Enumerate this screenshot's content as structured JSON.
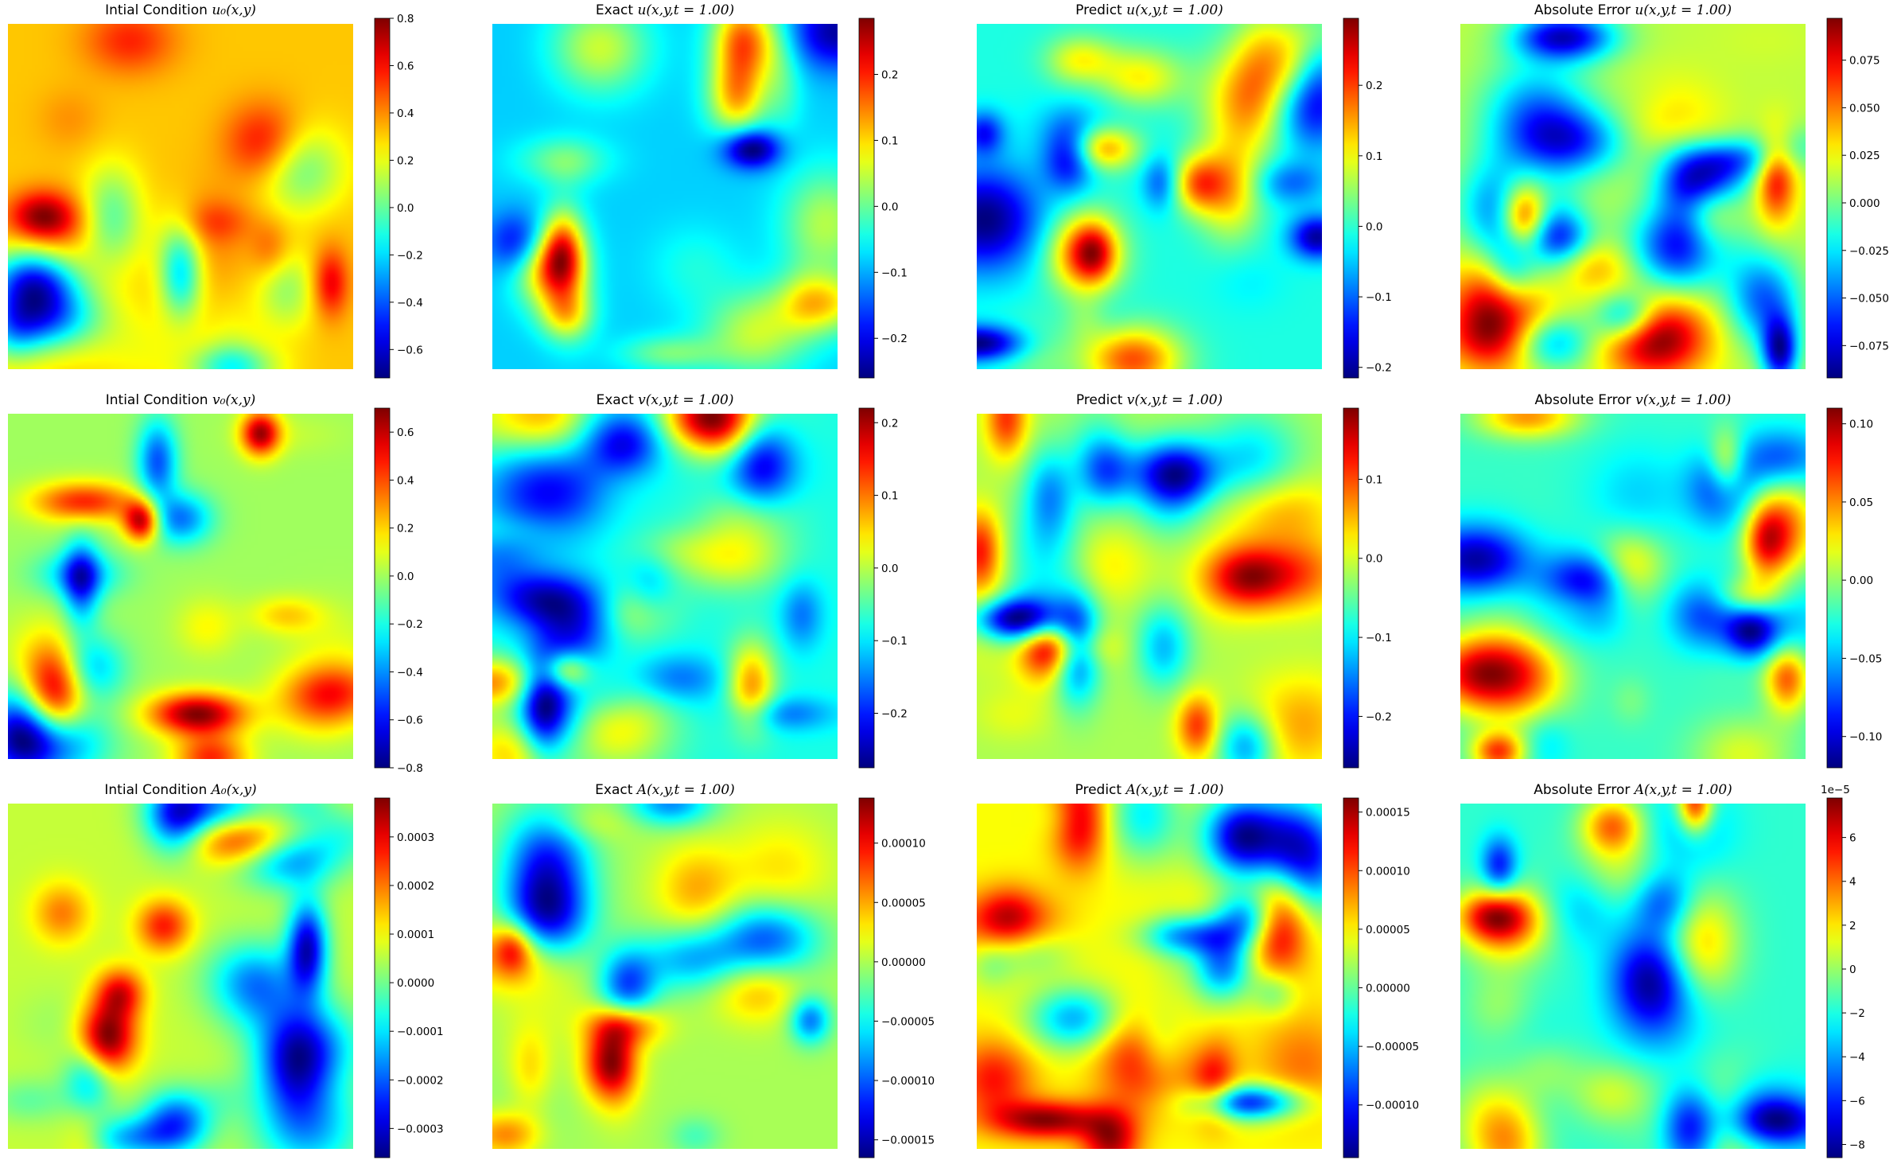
{
  "chart_data": [
    {
      "type": "heatmap",
      "row": 0,
      "col": 0,
      "title_prefix": "Intial Condition ",
      "title_math": "u₀(x,y)",
      "colormap": "jet",
      "vmin": -0.72,
      "vmax": 0.8,
      "ticks": [
        -0.6,
        -0.4,
        -0.2,
        0.0,
        0.2,
        0.4,
        0.6,
        0.8
      ],
      "tick_labels": [
        "−0.6",
        "−0.4",
        "−0.2",
        "0.0",
        "0.2",
        "0.4",
        "0.6",
        "0.8"
      ],
      "offset_text": "",
      "seed": 11
    },
    {
      "type": "heatmap",
      "row": 0,
      "col": 1,
      "title_prefix": "Exact ",
      "title_math": "u(x,y,t = 1.00)",
      "colormap": "jet",
      "vmin": -0.26,
      "vmax": 0.285,
      "ticks": [
        -0.2,
        -0.1,
        0.0,
        0.1,
        0.2
      ],
      "tick_labels": [
        "−0.2",
        "−0.1",
        "0.0",
        "0.1",
        "0.2"
      ],
      "offset_text": "",
      "seed": 23
    },
    {
      "type": "heatmap",
      "row": 0,
      "col": 2,
      "title_prefix": "Predict ",
      "title_math": "u(x,y,t = 1.00)",
      "colormap": "jet",
      "vmin": -0.215,
      "vmax": 0.295,
      "ticks": [
        -0.2,
        -0.1,
        0.0,
        0.1,
        0.2
      ],
      "tick_labels": [
        "−0.2",
        "−0.1",
        "0.0",
        "0.1",
        "0.2"
      ],
      "offset_text": "",
      "seed": 37
    },
    {
      "type": "heatmap",
      "row": 0,
      "col": 3,
      "title_prefix": "Absolute Error ",
      "title_math": "u(x,y,t = 1.00)",
      "colormap": "jet",
      "vmin": -0.092,
      "vmax": 0.097,
      "ticks": [
        -0.075,
        -0.05,
        -0.025,
        0.0,
        0.025,
        0.05,
        0.075
      ],
      "tick_labels": [
        "−0.075",
        "−0.050",
        "−0.025",
        "0.000",
        "0.025",
        "0.050",
        "0.075"
      ],
      "offset_text": "",
      "seed": 41
    },
    {
      "type": "heatmap",
      "row": 1,
      "col": 0,
      "title_prefix": "Intial Condition ",
      "title_math": "v₀(x,y)",
      "colormap": "jet",
      "vmin": -0.8,
      "vmax": 0.7,
      "ticks": [
        -0.8,
        -0.6,
        -0.4,
        -0.2,
        0.0,
        0.2,
        0.4,
        0.6
      ],
      "tick_labels": [
        "−0.8",
        "−0.6",
        "−0.4",
        "−0.2",
        "0.0",
        "0.2",
        "0.4",
        "0.6"
      ],
      "offset_text": "",
      "seed": 53
    },
    {
      "type": "heatmap",
      "row": 1,
      "col": 1,
      "title_prefix": "Exact ",
      "title_math": "v(x,y,t = 1.00)",
      "colormap": "jet",
      "vmin": -0.275,
      "vmax": 0.22,
      "ticks": [
        -0.2,
        -0.1,
        0.0,
        0.1,
        0.2
      ],
      "tick_labels": [
        "−0.2",
        "−0.1",
        "0.0",
        "0.1",
        "0.2"
      ],
      "offset_text": "",
      "seed": 67
    },
    {
      "type": "heatmap",
      "row": 1,
      "col": 2,
      "title_prefix": "Predict ",
      "title_math": "v(x,y,t = 1.00)",
      "colormap": "jet",
      "vmin": -0.265,
      "vmax": 0.19,
      "ticks": [
        -0.2,
        -0.1,
        0.0,
        0.1
      ],
      "tick_labels": [
        "−0.2",
        "−0.1",
        "0.0",
        "0.1"
      ],
      "offset_text": "",
      "seed": 71
    },
    {
      "type": "heatmap",
      "row": 1,
      "col": 3,
      "title_prefix": "Absolute Error ",
      "title_math": "v(x,y,t = 1.00)",
      "colormap": "jet",
      "vmin": -0.12,
      "vmax": 0.11,
      "ticks": [
        -0.1,
        -0.05,
        0.0,
        0.05,
        0.1
      ],
      "tick_labels": [
        "−0.10",
        "−0.05",
        "0.00",
        "0.05",
        "0.10"
      ],
      "offset_text": "",
      "seed": 83
    },
    {
      "type": "heatmap",
      "row": 2,
      "col": 0,
      "title_prefix": "Intial Condition ",
      "title_math": "A₀(x,y)",
      "colormap": "jet",
      "vmin": -0.00036,
      "vmax": 0.00038,
      "ticks": [
        -0.0003,
        -0.0002,
        -0.0001,
        0.0,
        0.0001,
        0.0002,
        0.0003
      ],
      "tick_labels": [
        "−0.0003",
        "−0.0002",
        "−0.0001",
        "0.0000",
        "0.0001",
        "0.0002",
        "0.0003"
      ],
      "offset_text": "",
      "seed": 97
    },
    {
      "type": "heatmap",
      "row": 2,
      "col": 1,
      "title_prefix": "Exact ",
      "title_math": "A(x,y,t = 1.00)",
      "colormap": "jet",
      "vmin": -0.000165,
      "vmax": 0.000138,
      "ticks": [
        -0.00015,
        -0.0001,
        -5e-05,
        0.0,
        5e-05,
        0.0001
      ],
      "tick_labels": [
        "−0.00015",
        "−0.00010",
        "−0.00005",
        "0.00000",
        "0.00005",
        "0.00010"
      ],
      "offset_text": "",
      "seed": 101
    },
    {
      "type": "heatmap",
      "row": 2,
      "col": 2,
      "title_prefix": "Predict ",
      "title_math": "A(x,y,t = 1.00)",
      "colormap": "jet",
      "vmin": -0.000145,
      "vmax": 0.000162,
      "ticks": [
        -0.0001,
        -5e-05,
        0.0,
        5e-05,
        0.0001,
        0.00015
      ],
      "tick_labels": [
        "−0.00010",
        "−0.00005",
        "0.00000",
        "0.00005",
        "0.00010",
        "0.00015"
      ],
      "offset_text": "",
      "seed": 113
    },
    {
      "type": "heatmap",
      "row": 2,
      "col": 3,
      "title_prefix": "Absolute Error ",
      "title_math": "A(x,y,t = 1.00)",
      "colormap": "jet",
      "vmin": -8.6,
      "vmax": 7.8,
      "ticks": [
        -8,
        -6,
        -4,
        -2,
        0,
        2,
        4,
        6
      ],
      "tick_labels": [
        "−8",
        "−6",
        "−4",
        "−2",
        "0",
        "2",
        "4",
        "6"
      ],
      "offset_text": "1e−5",
      "seed": 127
    }
  ]
}
